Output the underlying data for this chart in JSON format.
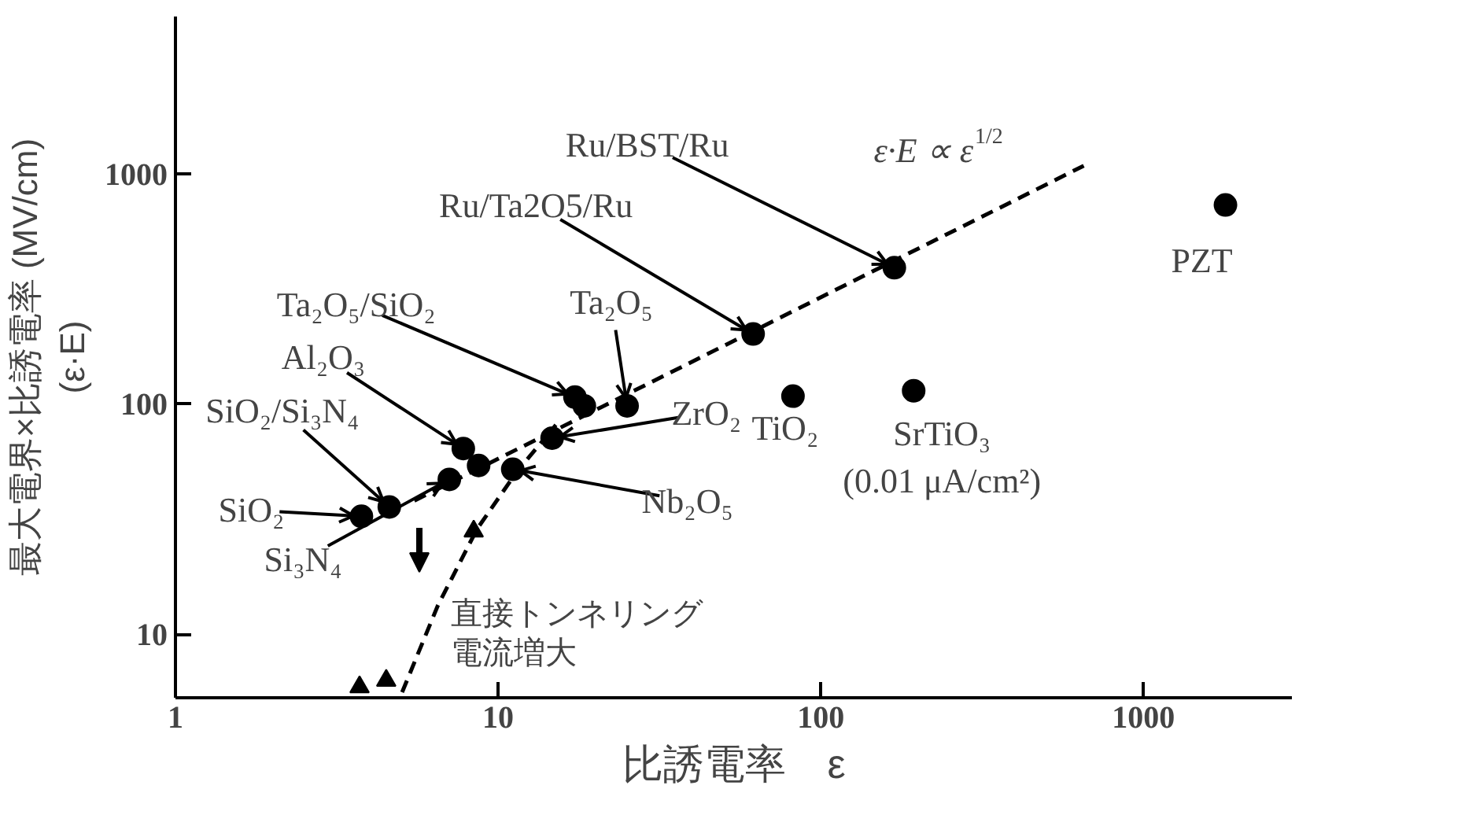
{
  "chart_data": {
    "type": "scatter",
    "xlabel": "比誘電率　ε",
    "ylabel": "最大電界×比誘電率 (MV/cm)\n(ε·E)",
    "log": "xy",
    "grid": false,
    "xlim": [
      1,
      2900
    ],
    "ylim": [
      5.3,
      4800
    ],
    "xticks": [
      1,
      10,
      100,
      1000
    ],
    "yticks": [
      10,
      100,
      1000
    ],
    "series": [
      {
        "type": "scatter",
        "marker": "circle",
        "color": "#000000",
        "x": [
          3.77,
          4.6,
          7.06,
          7.8,
          8.7,
          11.1,
          14.7,
          17.3,
          18.5,
          25.1,
          61.7,
          169,
          82,
          194,
          1795
        ],
        "values": [
          32.5,
          35.7,
          47,
          64,
          54,
          52,
          71,
          107,
          98,
          98,
          201,
          390,
          108,
          114,
          730
        ]
      },
      {
        "type": "scatter",
        "marker": "triangle",
        "color": "#000000",
        "x": [
          3.72,
          4.5,
          8.4
        ],
        "values": [
          5.9,
          6.3,
          28
        ]
      },
      {
        "type": "line",
        "line_style": "dashed",
        "color": "#000000",
        "x": [
          5.5,
          653
        ],
        "values": [
          38,
          1080
        ]
      },
      {
        "type": "line",
        "line_style": "dashed",
        "color": "#000000",
        "x": [
          5.04,
          6.5,
          8.6,
          11.4,
          15.1
        ],
        "values": [
          5.6,
          13.3,
          28.6,
          50.5,
          81
        ]
      }
    ],
    "annotations": [
      {
        "text": "Ru/BST/Ru",
        "x": 169,
        "y": 390
      },
      {
        "text": "Ru/Ta2O5/Ru",
        "x": 61.7,
        "y": 201
      },
      {
        "text": "Ta₂O₅/SiO₂",
        "x": 17.3,
        "y": 107
      },
      {
        "text": "Ta₂O₅",
        "x": 25.1,
        "y": 98
      },
      {
        "text": "Al₂O₃",
        "x": 7.8,
        "y": 64
      },
      {
        "text": "SiO₂/Si₃N₄",
        "x": 4.6,
        "y": 35.7
      },
      {
        "text": "SiO₂",
        "x": 3.77,
        "y": 32.5
      },
      {
        "text": "Si₃N₄",
        "x": 7.06,
        "y": 47
      },
      {
        "text": "ZrO₂",
        "x": 14.7,
        "y": 71
      },
      {
        "text": "Nb₂O₅",
        "x": 11.1,
        "y": 52
      },
      {
        "text": "TiO₂",
        "x": 82,
        "y": 108
      },
      {
        "text": "SrTiO₃\n(0.01 μA/cm²)",
        "x": 194,
        "y": 114
      },
      {
        "text": "PZT",
        "x": 1795,
        "y": 730
      },
      "ε·E ∝ ε$^{1/2}$",
      "直接トンネリング電流増大"
    ]
  }
}
